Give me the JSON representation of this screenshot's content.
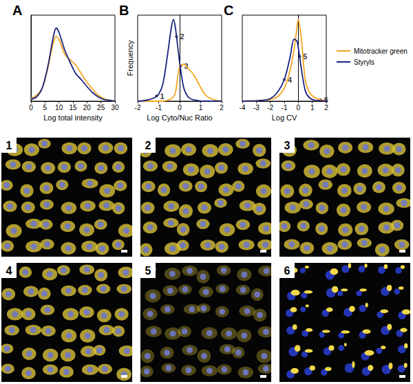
{
  "chart_data": [
    {
      "type": "line",
      "title": "A",
      "x_label": "Log total intensity",
      "xlim": [
        0,
        30
      ],
      "xticks": [
        0,
        5,
        10,
        15,
        20,
        25,
        30
      ],
      "ylim": [
        0,
        1
      ],
      "tick_labels": "x",
      "x": [
        0,
        2,
        4,
        6,
        8,
        9,
        10,
        12,
        14,
        16,
        18,
        20,
        22,
        24,
        26,
        28,
        30
      ],
      "series": [
        {
          "name": "Mitotracker green",
          "color": "#f5a623",
          "values": [
            0.03,
            0.07,
            0.15,
            0.38,
            0.68,
            0.75,
            0.72,
            0.55,
            0.48,
            0.42,
            0.32,
            0.22,
            0.14,
            0.07,
            0.03,
            0.01,
            0
          ]
        },
        {
          "name": "Styryls",
          "color": "#1a237e",
          "values": [
            0.02,
            0.05,
            0.15,
            0.4,
            0.75,
            0.85,
            0.8,
            0.6,
            0.45,
            0.32,
            0.25,
            0.17,
            0.1,
            0.05,
            0.02,
            0.01,
            0
          ]
        }
      ]
    },
    {
      "type": "line",
      "title": "B",
      "x_label": "Log Cyto/Nuc Ratio",
      "y_label": "Frequency",
      "xlim": [
        -2,
        2
      ],
      "xticks": [
        -2,
        -1,
        0,
        1,
        2
      ],
      "ylim": [
        0,
        1
      ],
      "tick_labels": "x",
      "x": [
        -2,
        -1.6,
        -1.2,
        -1,
        -0.8,
        -0.6,
        -0.4,
        -0.3,
        -0.2,
        0,
        0.2,
        0.4,
        0.6,
        0.8,
        1,
        1.2,
        1.4,
        1.6,
        2
      ],
      "series": [
        {
          "name": "Mitotracker green",
          "color": "#f5a623",
          "values": [
            0,
            0,
            0,
            0,
            0,
            0.01,
            0.03,
            0.05,
            0.1,
            0.4,
            0.43,
            0.38,
            0.33,
            0.25,
            0.16,
            0.08,
            0.04,
            0.02,
            0
          ]
        },
        {
          "name": "Styryls",
          "color": "#1a237e",
          "values": [
            0,
            0.01,
            0.04,
            0.08,
            0.2,
            0.5,
            0.85,
            0.95,
            0.85,
            0.45,
            0.15,
            0.05,
            0.02,
            0.01,
            0,
            0,
            0,
            0,
            0
          ]
        }
      ],
      "annotations": [
        {
          "label": "1",
          "x": -1.1,
          "y": 0.06
        },
        {
          "label": "2",
          "x": -0.15,
          "y": 0.75
        },
        {
          "label": "3",
          "x": 0.05,
          "y": 0.41
        }
      ]
    },
    {
      "type": "line",
      "title": "C",
      "x_label": "Log CV",
      "legend": "top-right",
      "xlim": [
        -4,
        2
      ],
      "xticks": [
        -4,
        -3,
        -2,
        -1,
        0,
        1,
        2
      ],
      "ylim": [
        0,
        1
      ],
      "tick_labels": "x",
      "x": [
        -4,
        -3,
        -2.5,
        -2,
        -1.5,
        -1,
        -0.6,
        -0.3,
        -0.1,
        0,
        0.2,
        0.5,
        0.8,
        1.2,
        1.6,
        2
      ],
      "series": [
        {
          "name": "Mitotracker green",
          "color": "#f5a623",
          "values": [
            0,
            0.005,
            0.01,
            0.02,
            0.05,
            0.15,
            0.35,
            0.6,
            0.85,
            0.95,
            0.75,
            0.25,
            0.1,
            0.04,
            0.015,
            0
          ]
        },
        {
          "name": "Styryls",
          "color": "#1a237e",
          "values": [
            0,
            0.005,
            0.01,
            0.03,
            0.1,
            0.25,
            0.5,
            0.72,
            0.7,
            0.62,
            0.4,
            0.12,
            0.04,
            0.01,
            0.005,
            0
          ]
        }
      ],
      "annotations": [
        {
          "label": "4",
          "x": -1.0,
          "y": 0.25
        },
        {
          "label": "5",
          "x": 0.1,
          "y": 0.52
        },
        {
          "label": "6",
          "x": 1.6,
          "y": 0.015
        }
      ]
    }
  ],
  "images": [
    {
      "label": "1"
    },
    {
      "label": "2"
    },
    {
      "label": "3"
    },
    {
      "label": "4"
    },
    {
      "label": "5"
    },
    {
      "label": "6"
    }
  ]
}
